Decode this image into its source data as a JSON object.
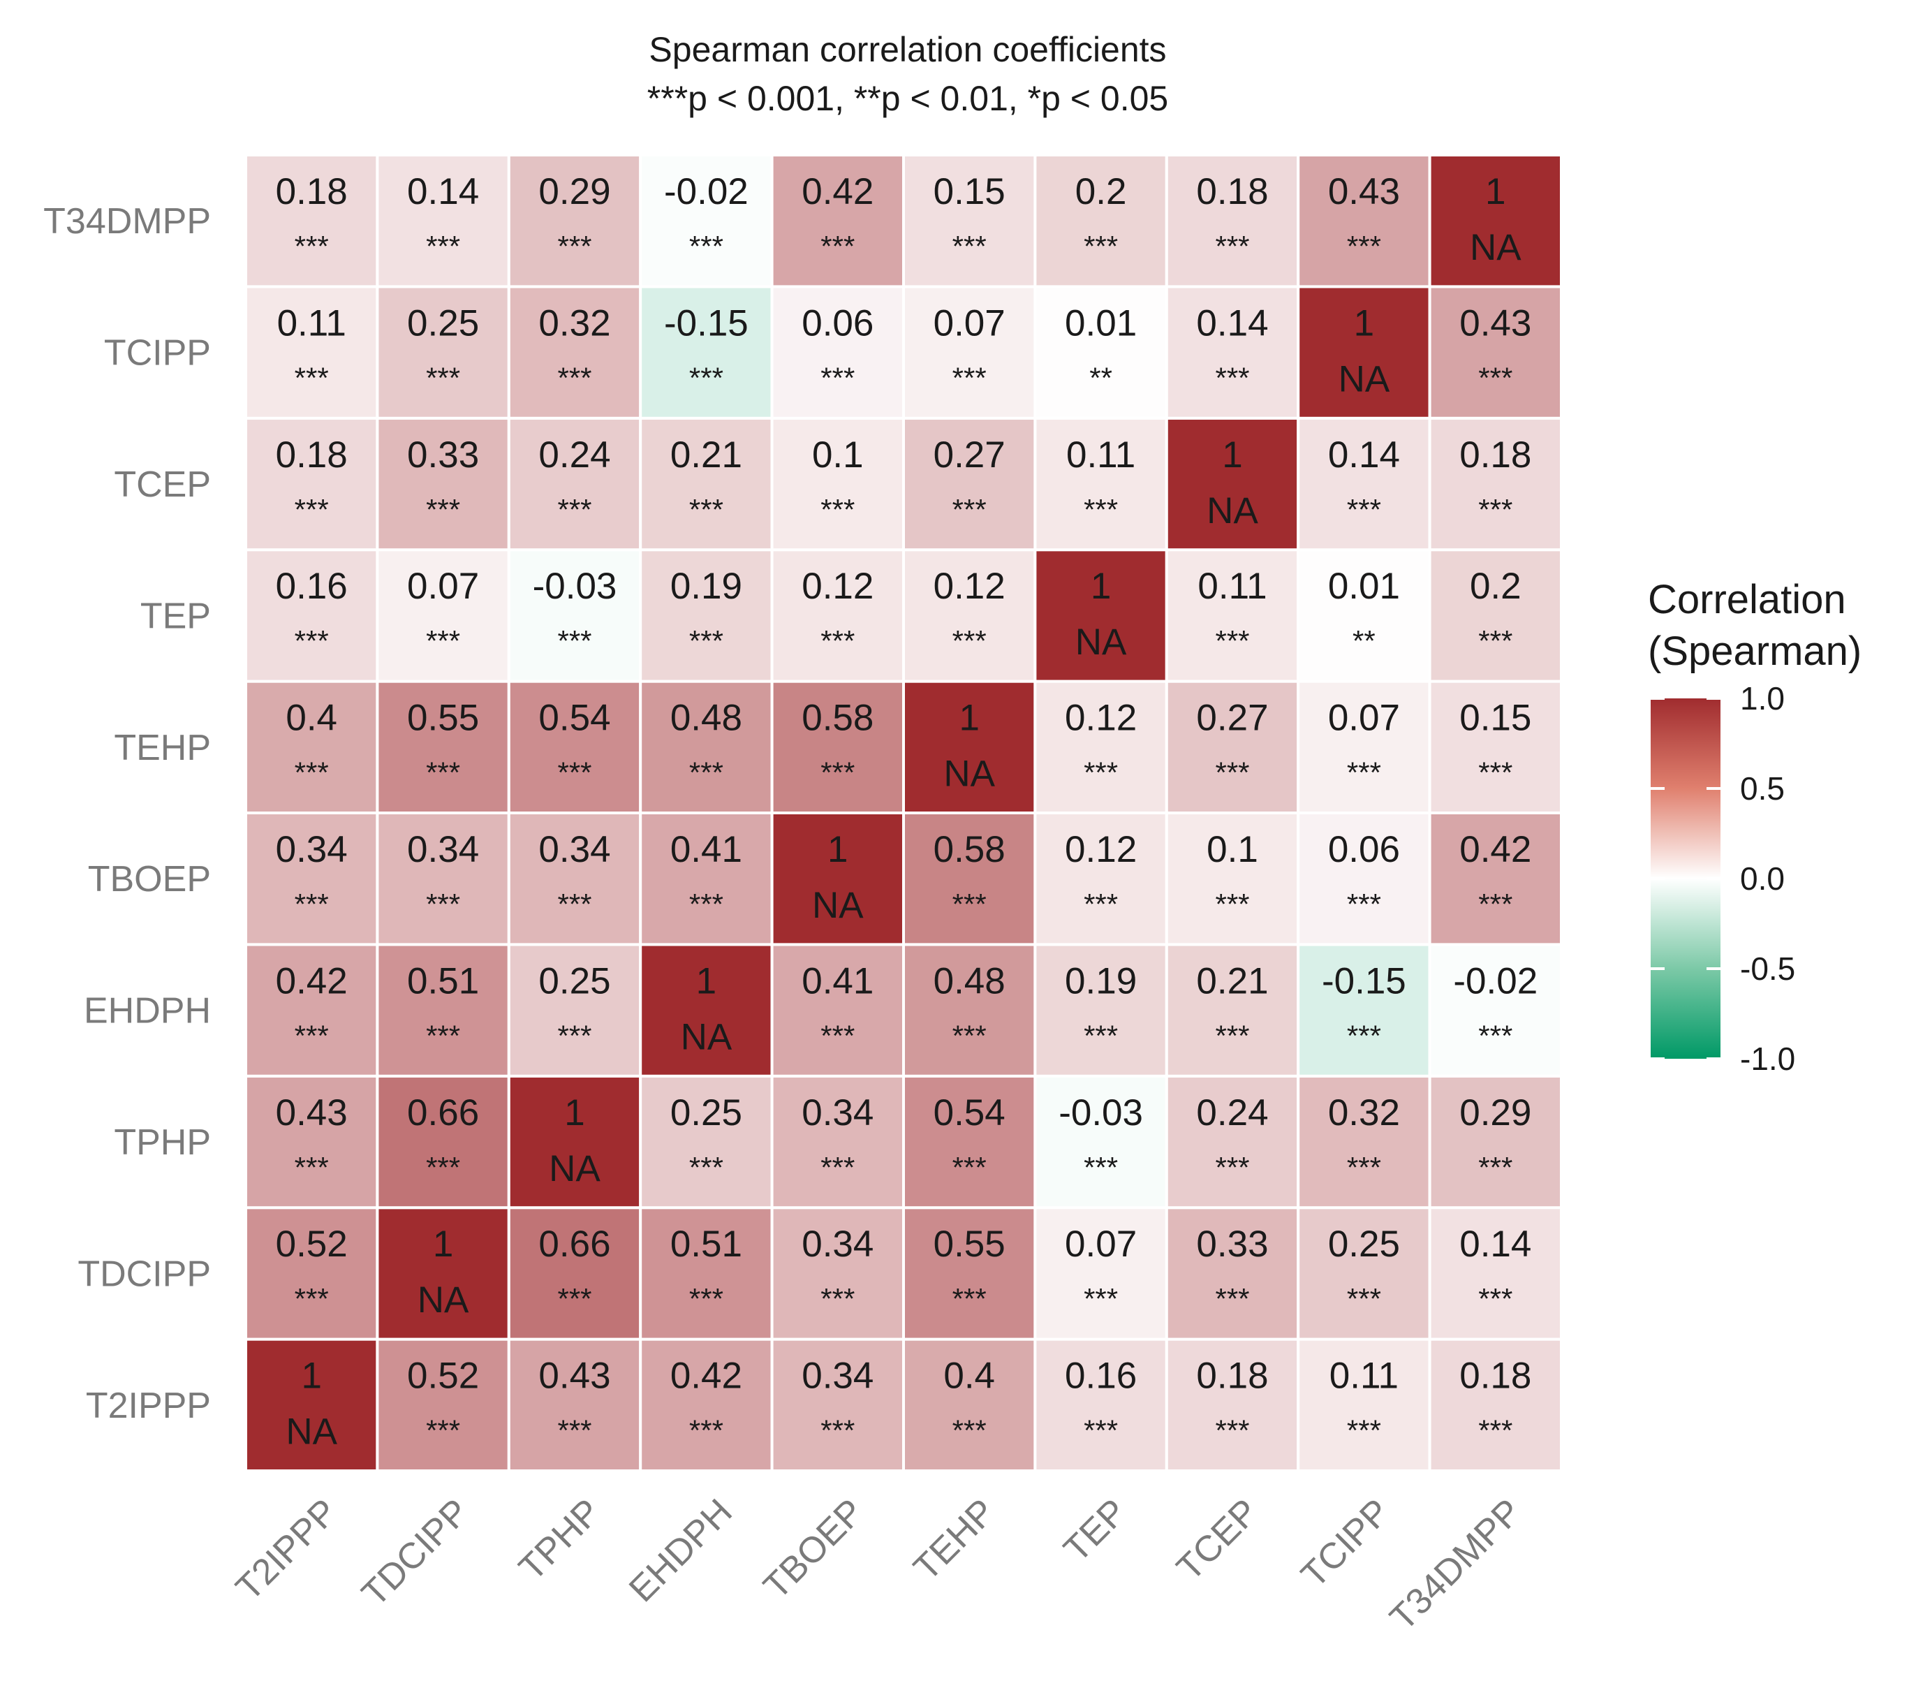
{
  "chart_data": {
    "type": "heatmap",
    "title": "Spearman correlation coefficients",
    "subtitle": "***p < 0.001, **p < 0.01, *p < 0.05",
    "variables": [
      "T2IPPP",
      "TDCIPP",
      "TPHP",
      "EHDPH",
      "TBOEP",
      "TEHP",
      "TEP",
      "TCEP",
      "TCIPP",
      "T34DMPP"
    ],
    "matrix": [
      [
        1,
        0.52,
        0.43,
        0.42,
        0.34,
        0.4,
        0.16,
        0.18,
        0.11,
        0.18
      ],
      [
        0.52,
        1,
        0.66,
        0.51,
        0.34,
        0.55,
        0.07,
        0.33,
        0.25,
        0.14
      ],
      [
        0.43,
        0.66,
        1,
        0.25,
        0.34,
        0.54,
        -0.03,
        0.24,
        0.32,
        0.29
      ],
      [
        0.42,
        0.51,
        0.25,
        1,
        0.41,
        0.48,
        0.19,
        0.21,
        -0.15,
        -0.02
      ],
      [
        0.34,
        0.34,
        0.34,
        0.41,
        1,
        0.58,
        0.12,
        0.1,
        0.06,
        0.42
      ],
      [
        0.4,
        0.55,
        0.54,
        0.48,
        0.58,
        1,
        0.12,
        0.27,
        0.07,
        0.15
      ],
      [
        0.16,
        0.07,
        -0.03,
        0.19,
        0.12,
        0.12,
        1,
        0.11,
        0.01,
        0.2
      ],
      [
        0.18,
        0.33,
        0.24,
        0.21,
        0.1,
        0.27,
        0.11,
        1,
        0.14,
        0.18
      ],
      [
        0.11,
        0.25,
        0.32,
        -0.15,
        0.06,
        0.07,
        0.01,
        0.14,
        1,
        0.43
      ],
      [
        0.18,
        0.14,
        0.29,
        -0.02,
        0.42,
        0.15,
        0.2,
        0.18,
        0.43,
        1
      ]
    ],
    "significance": [
      [
        "NA",
        "***",
        "***",
        "***",
        "***",
        "***",
        "***",
        "***",
        "***",
        "***"
      ],
      [
        "***",
        "NA",
        "***",
        "***",
        "***",
        "***",
        "***",
        "***",
        "***",
        "***"
      ],
      [
        "***",
        "***",
        "NA",
        "***",
        "***",
        "***",
        "***",
        "***",
        "***",
        "***"
      ],
      [
        "***",
        "***",
        "***",
        "NA",
        "***",
        "***",
        "***",
        "***",
        "***",
        "***"
      ],
      [
        "***",
        "***",
        "***",
        "***",
        "NA",
        "***",
        "***",
        "***",
        "***",
        "***"
      ],
      [
        "***",
        "***",
        "***",
        "***",
        "***",
        "NA",
        "***",
        "***",
        "***",
        "***"
      ],
      [
        "***",
        "***",
        "***",
        "***",
        "***",
        "***",
        "NA",
        "***",
        "**",
        "***"
      ],
      [
        "***",
        "***",
        "***",
        "***",
        "***",
        "***",
        "***",
        "NA",
        "***",
        "***"
      ],
      [
        "***",
        "***",
        "***",
        "***",
        "***",
        "***",
        "**",
        "***",
        "NA",
        "***"
      ],
      [
        "***",
        "***",
        "***",
        "***",
        "***",
        "***",
        "***",
        "***",
        "***",
        "NA"
      ]
    ],
    "legend": {
      "title_line1": "Correlation",
      "title_line2": "(Spearman)",
      "ticks": [
        1.0,
        0.5,
        0.0,
        -0.5,
        -1.0
      ],
      "tick_labels": [
        "1.0",
        "0.5",
        "0.0",
        "-0.5",
        "-1.0"
      ],
      "range": [
        -1,
        1
      ],
      "position": "right"
    },
    "colors": {
      "high": "#A02C2F",
      "mid": "#FFFFFF",
      "low": "#009966",
      "grid_line": "#FFFFFF"
    }
  }
}
